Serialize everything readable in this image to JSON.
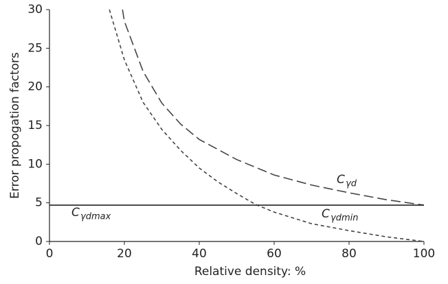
{
  "chart_data": {
    "type": "line",
    "xlabel": "Relative density: %",
    "ylabel": "Error propogation factors",
    "xlim": [
      0,
      100
    ],
    "xticks": [
      0,
      20,
      40,
      60,
      80,
      100
    ],
    "ylim": [
      0,
      30
    ],
    "yticks": [
      0,
      5,
      10,
      15,
      20,
      25,
      30
    ],
    "series": [
      {
        "label_base": "C",
        "label_sub": "γd",
        "color": "#444444",
        "dash": "long",
        "x": [
          19.5,
          20,
          25,
          30,
          35,
          40,
          50,
          60,
          70,
          80,
          90,
          100
        ],
        "values": [
          30,
          28.5,
          22,
          17.9,
          15.2,
          13.2,
          10.6,
          8.6,
          7.3,
          6.3,
          5.4,
          4.7
        ]
      },
      {
        "label_base": "C",
        "label_sub": "γdmin",
        "color": "#444444",
        "dash": "short",
        "x": [
          16,
          20,
          25,
          30,
          35,
          40,
          45,
          50,
          55,
          60,
          70,
          80,
          90,
          100
        ],
        "values": [
          30,
          23.5,
          18,
          14.5,
          11.8,
          9.5,
          7.7,
          6.2,
          4.8,
          3.8,
          2.3,
          1.4,
          0.6,
          0
        ]
      },
      {
        "label_base": "C",
        "label_sub": "γdmax",
        "color": "#222222",
        "dash": "solid",
        "x": [
          0,
          100
        ],
        "values": [
          4.7,
          4.7
        ]
      }
    ]
  }
}
